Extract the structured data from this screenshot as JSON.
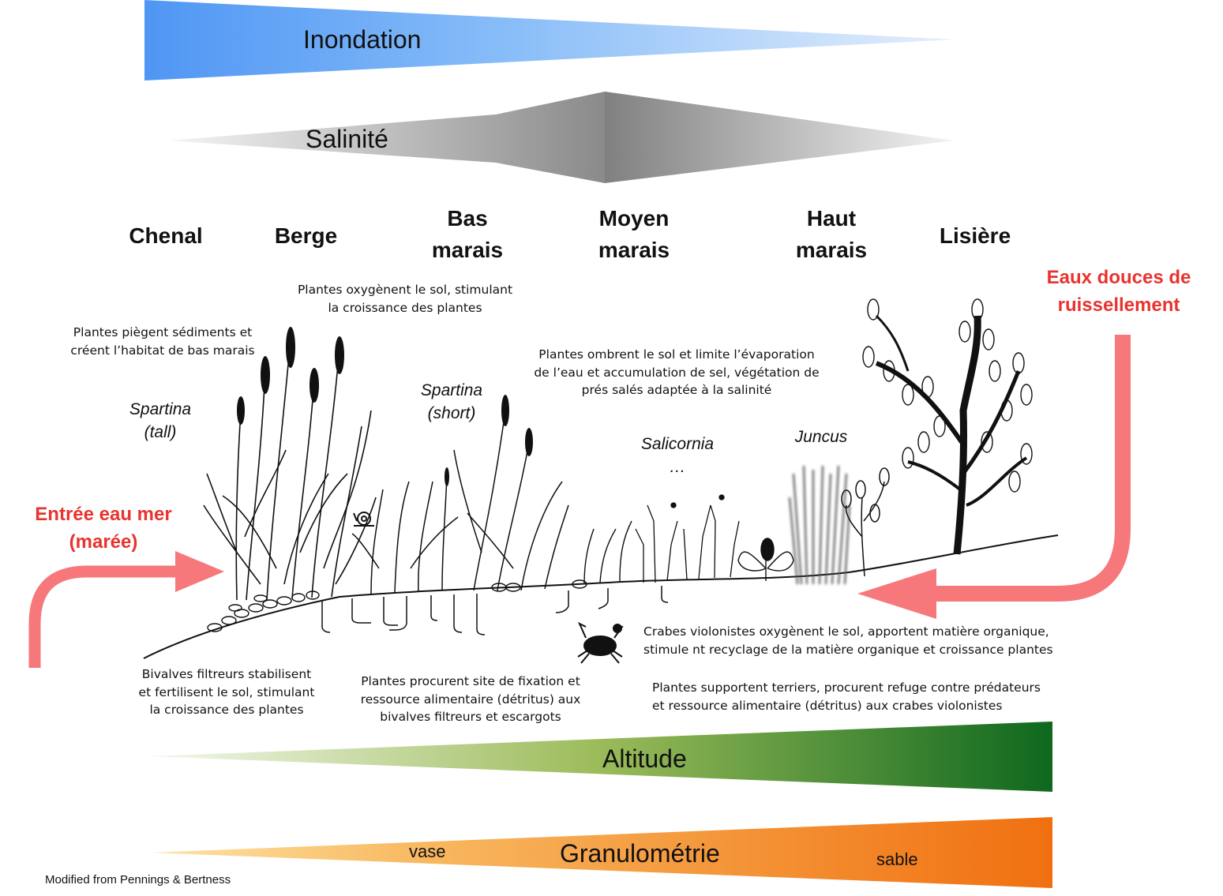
{
  "gradients": {
    "inondation": "Inondation",
    "salinite": "Salinité",
    "altitude": "Altitude",
    "granulometrie": "Granulométrie",
    "vase": "vase",
    "sable": "sable"
  },
  "zones": {
    "chenal": "Chenal",
    "berge": "Berge",
    "bas_marais": "Bas\nmarais",
    "moyen_marais": "Moyen\nmarais",
    "haut_marais": "Haut\nmarais",
    "lisiere": "Lisière"
  },
  "species": {
    "spartina_tall": "Spartina\n(tall)",
    "spartina_short": "Spartina\n(short)",
    "salicornia": "Salicornia\n…",
    "juncus": "Juncus"
  },
  "water": {
    "sea_inflow": "Entrée eau mer\n(marée)",
    "freshwater": "Eaux douces de\nruissellement"
  },
  "notes": {
    "plants_trap": "Plantes piègent sédiments et\ncréent l’habitat de bas marais",
    "plants_oxygenate": "Plantes oxygènent le sol, stimulant\nla croissance des plantes",
    "plants_shade": "Plantes ombrent le sol et limite l’évaporation\nde l’eau et accumulation de sel, végétation de\nprés salés adaptée à la salinité",
    "bivalves": "Bivalves filtreurs stabilisent\net fertilisent le sol, stimulant\nla croissance des plantes",
    "plants_fixation": "Plantes procurent site de fixation  et\nressource alimentaire  (détritus) aux\nbivalves filtreurs et escargots",
    "crabs": "Crabes violonistes  oxygènent le sol, apportent matière organique,\nstimule nt recyclage  de la matière organique et croissance plantes",
    "plants_burrows": "Plantes supportent terriers, procurent refuge contre prédateurs\net ressource alimentaire (détritus) aux crabes violonistes"
  },
  "credit": "Modified from Pennings & Bertness",
  "colors": {
    "inondation_start": "#4f96f4",
    "inondation_end": "#e3eefc",
    "salinite_dark": "#7f7f7f",
    "salinite_light": "#f2f2f2",
    "altitude_start": "#eef5e4",
    "altitude_mid": "#9bbb59",
    "altitude_end": "#0f6b1f",
    "granulo_start": "#fdd380",
    "granulo_end": "#f07010",
    "water_arrow": "#f7787a",
    "water_label": "#e8332e"
  }
}
